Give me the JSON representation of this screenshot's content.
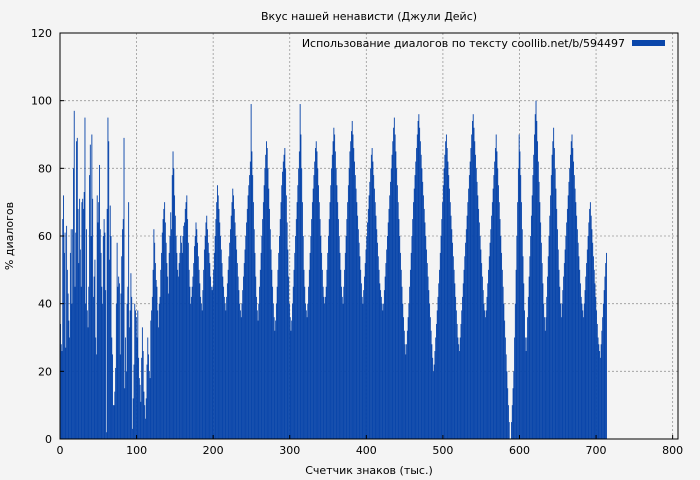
{
  "chart_data": {
    "type": "bar",
    "title": "Вкус нашей ненависти (Джули Дейс)",
    "xlabel": "Счетчик знаков (тыс.)",
    "ylabel": "% диалогов",
    "xlim": [
      0,
      807
    ],
    "ylim": [
      0,
      120
    ],
    "x_ticks": [
      "0",
      "100",
      "200",
      "300",
      "400",
      "500",
      "600",
      "700",
      "800"
    ],
    "y_ticks": [
      "0",
      "20",
      "40",
      "60",
      "80",
      "100",
      "120"
    ],
    "grid": true,
    "legend_position": "top-right",
    "series": [
      {
        "name": "Использование диалогов по тексту coollib.net/b/594497",
        "color": "#0a46aa",
        "bin_width": 1,
        "x_start": 0,
        "values": [
          34,
          28,
          26,
          65,
          72,
          55,
          61,
          27,
          63,
          50,
          43,
          35,
          30,
          55,
          62,
          40,
          62,
          80,
          97,
          45,
          61,
          88,
          89,
          68,
          52,
          71,
          56,
          45,
          70,
          71,
          68,
          73,
          95,
          40,
          62,
          38,
          33,
          45,
          78,
          87,
          60,
          90,
          71,
          42,
          48,
          53,
          30,
          25,
          72,
          64,
          70,
          81,
          62,
          55,
          45,
          40,
          60,
          65,
          61,
          44,
          2,
          68,
          95,
          88,
          53,
          69,
          60,
          30,
          25,
          10,
          10,
          14,
          21,
          40,
          58,
          45,
          48,
          46,
          25,
          43,
          54,
          62,
          65,
          89,
          15,
          30,
          20,
          40,
          45,
          70,
          33,
          38,
          49,
          42,
          3,
          12,
          22,
          40,
          38,
          36,
          30,
          38,
          24,
          18,
          16,
          11,
          24,
          33,
          26,
          14,
          10,
          6,
          12,
          22,
          30,
          25,
          20,
          18,
          35,
          38,
          42,
          50,
          62,
          58,
          52,
          47,
          45,
          38,
          33,
          40,
          42,
          50,
          55,
          61,
          65,
          68,
          70,
          64,
          58,
          52,
          48,
          43,
          55,
          60,
          67,
          62,
          78,
          85,
          80,
          72,
          66,
          60,
          55,
          50,
          48,
          52,
          55,
          60,
          58,
          55,
          60,
          63,
          64,
          68,
          70,
          72,
          65,
          58,
          50,
          45,
          40,
          42,
          45,
          48,
          52,
          57,
          60,
          64,
          62,
          58,
          54,
          50,
          46,
          42,
          40,
          38,
          44,
          50,
          56,
          60,
          64,
          66,
          62,
          58,
          55,
          52,
          48,
          45,
          44,
          45,
          50,
          55,
          60,
          65,
          70,
          75,
          72,
          68,
          64,
          60,
          56,
          52,
          48,
          45,
          42,
          40,
          38,
          42,
          46,
          50,
          54,
          58,
          62,
          66,
          70,
          74,
          72,
          68,
          64,
          60,
          56,
          52,
          48,
          44,
          40,
          38,
          36,
          40,
          44,
          48,
          52,
          56,
          60,
          64,
          68,
          72,
          75,
          78,
          82,
          99,
          85,
          78,
          70,
          62,
          55,
          48,
          42,
          38,
          35,
          40,
          45,
          50,
          55,
          60,
          65,
          70,
          75,
          80,
          84,
          88,
          86,
          80,
          74,
          68,
          62,
          56,
          50,
          45,
          40,
          36,
          32,
          35,
          40,
          45,
          50,
          55,
          60,
          65,
          70,
          75,
          79,
          82,
          84,
          86,
          80,
          72,
          64,
          56,
          48,
          40,
          36,
          32,
          35,
          40,
          45,
          50,
          55,
          60,
          65,
          70,
          75,
          80,
          85,
          99,
          90,
          80,
          70,
          60,
          50,
          45,
          40,
          38,
          36,
          40,
          45,
          50,
          55,
          60,
          65,
          70,
          74,
          78,
          82,
          86,
          88,
          85,
          80,
          75,
          70,
          65,
          60,
          55,
          50,
          45,
          42,
          40,
          42,
          45,
          50,
          55,
          60,
          65,
          70,
          75,
          80,
          84,
          88,
          92,
          90,
          85,
          80,
          75,
          70,
          65,
          60,
          55,
          50,
          45,
          42,
          40,
          45,
          50,
          55,
          60,
          65,
          70,
          75,
          80,
          85,
          88,
          91,
          94,
          90,
          86,
          82,
          78,
          74,
          70,
          66,
          62,
          58,
          54,
          50,
          46,
          42,
          40,
          44,
          48,
          52,
          56,
          60,
          64,
          68,
          72,
          76,
          80,
          84,
          86,
          82,
          78,
          74,
          70,
          66,
          62,
          58,
          54,
          50,
          46,
          44,
          42,
          40,
          38,
          40,
          44,
          48,
          52,
          56,
          60,
          64,
          68,
          72,
          76,
          80,
          84,
          88,
          92,
          95,
          90,
          85,
          80,
          75,
          70,
          65,
          60,
          55,
          50,
          45,
          40,
          36,
          32,
          28,
          25,
          28,
          32,
          36,
          40,
          45,
          50,
          55,
          60,
          65,
          70,
          74,
          78,
          82,
          86,
          90,
          94,
          96,
          92,
          88,
          84,
          80,
          76,
          72,
          68,
          64,
          60,
          56,
          52,
          48,
          44,
          40,
          36,
          32,
          28,
          24,
          20,
          22,
          26,
          30,
          34,
          38,
          42,
          46,
          50,
          55,
          60,
          65,
          70,
          75,
          80,
          84,
          88,
          90,
          86,
          82,
          78,
          74,
          70,
          66,
          62,
          58,
          54,
          50,
          46,
          42,
          38,
          34,
          30,
          28,
          26,
          30,
          34,
          38,
          42,
          46,
          50,
          54,
          58,
          62,
          66,
          70,
          74,
          78,
          82,
          86,
          90,
          94,
          96,
          92,
          88,
          84,
          80,
          76,
          72,
          68,
          64,
          60,
          56,
          52,
          48,
          44,
          40,
          38,
          36,
          38,
          42,
          46,
          50,
          54,
          58,
          62,
          66,
          70,
          74,
          78,
          82,
          86,
          90,
          85,
          80,
          75,
          70,
          65,
          60,
          55,
          50,
          45,
          40,
          35,
          30,
          25,
          20,
          15,
          10,
          5,
          0,
          0,
          5,
          10,
          15,
          20,
          30,
          40,
          50,
          60,
          70,
          80,
          90,
          85,
          78,
          70,
          62,
          54,
          46,
          38,
          30,
          26,
          30,
          36,
          42,
          48,
          54,
          60,
          66,
          72,
          78,
          84,
          90,
          96,
          100,
          94,
          88,
          82,
          76,
          70,
          64,
          58,
          52,
          46,
          40,
          36,
          32,
          36,
          42,
          48,
          54,
          60,
          66,
          72,
          78,
          84,
          88,
          92,
          86,
          80,
          74,
          68,
          62,
          56,
          50,
          45,
          40,
          36,
          40,
          44,
          48,
          52,
          56,
          60,
          64,
          68,
          72,
          76,
          80,
          84,
          88,
          90,
          86,
          82,
          78,
          74,
          70,
          66,
          62,
          58,
          54,
          50,
          46,
          42,
          40,
          38,
          36,
          40,
          44,
          48,
          52,
          56,
          60,
          64,
          68,
          70,
          66,
          62,
          58,
          54,
          50,
          46,
          42,
          38,
          34,
          30,
          28,
          26,
          24,
          28,
          32,
          36,
          40,
          44,
          48,
          52,
          55
        ]
      }
    ]
  }
}
